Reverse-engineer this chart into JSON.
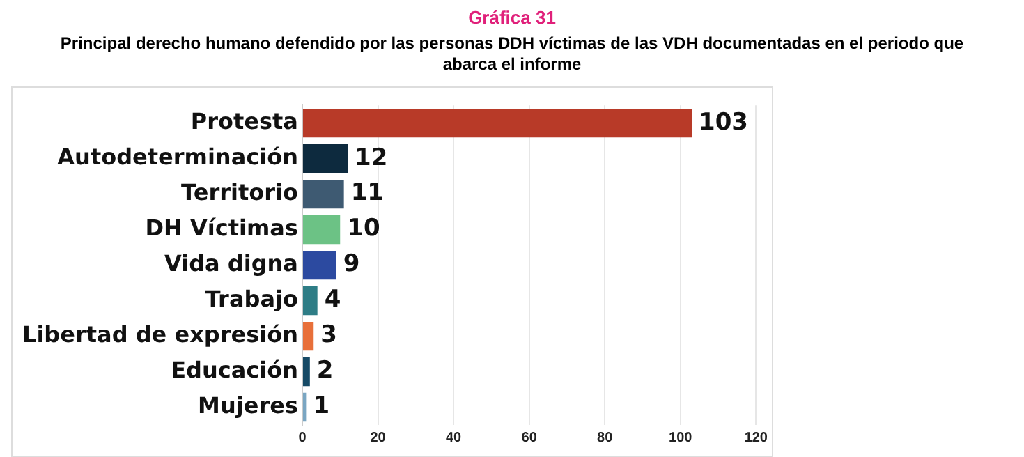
{
  "chart_data": {
    "type": "bar",
    "orientation": "horizontal",
    "title": "Gráfica 31",
    "subtitle": "Principal derecho humano defendido por las personas DDH víctimas de las VDH documentadas en el periodo que abarca el informe",
    "categories": [
      "Protesta",
      "Autodeterminación",
      "Territorio",
      "DH Víctimas",
      "Vida digna",
      "Trabajo",
      "Libertad de expresión",
      "Educación",
      "Mujeres"
    ],
    "values": [
      103,
      12,
      11,
      10,
      9,
      4,
      3,
      2,
      1
    ],
    "colors": [
      "#b83a28",
      "#0d2a3e",
      "#3e5a72",
      "#6cc285",
      "#2c4aa0",
      "#2e7d86",
      "#e8703a",
      "#164a66",
      "#7aa6c2"
    ],
    "xlim": [
      0,
      120
    ],
    "xticks": [
      0,
      20,
      40,
      60,
      80,
      100,
      120
    ],
    "grid": "x",
    "data_labels": true,
    "legend": false
  }
}
